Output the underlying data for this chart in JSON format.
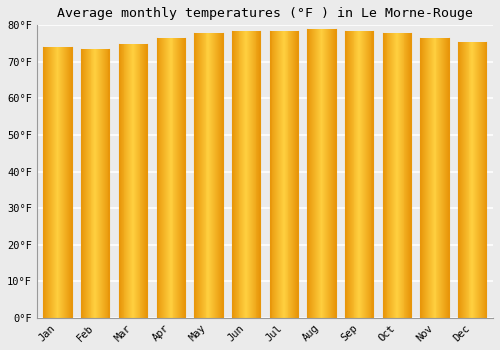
{
  "title": "Average monthly temperatures (°F ) in Le Morne-Rouge",
  "months": [
    "Jan",
    "Feb",
    "Mar",
    "Apr",
    "May",
    "Jun",
    "Jul",
    "Aug",
    "Sep",
    "Oct",
    "Nov",
    "Dec"
  ],
  "values": [
    74,
    73.5,
    75,
    76.5,
    78,
    78.5,
    78.5,
    79,
    78.5,
    78,
    76.5,
    75.5
  ],
  "bar_color_edge": "#E8960A",
  "bar_color_center": "#FFD040",
  "bar_color_fill": "#FBAE17",
  "background_color": "#ebebeb",
  "plot_bg_color": "#ebebeb",
  "grid_color": "#ffffff",
  "ylim": [
    0,
    80
  ],
  "yticks": [
    0,
    10,
    20,
    30,
    40,
    50,
    60,
    70,
    80
  ],
  "ytick_labels": [
    "0°F",
    "10°F",
    "20°F",
    "30°F",
    "40°F",
    "50°F",
    "60°F",
    "70°F",
    "80°F"
  ],
  "title_fontsize": 9.5,
  "tick_fontsize": 7.5,
  "bar_width": 0.75
}
